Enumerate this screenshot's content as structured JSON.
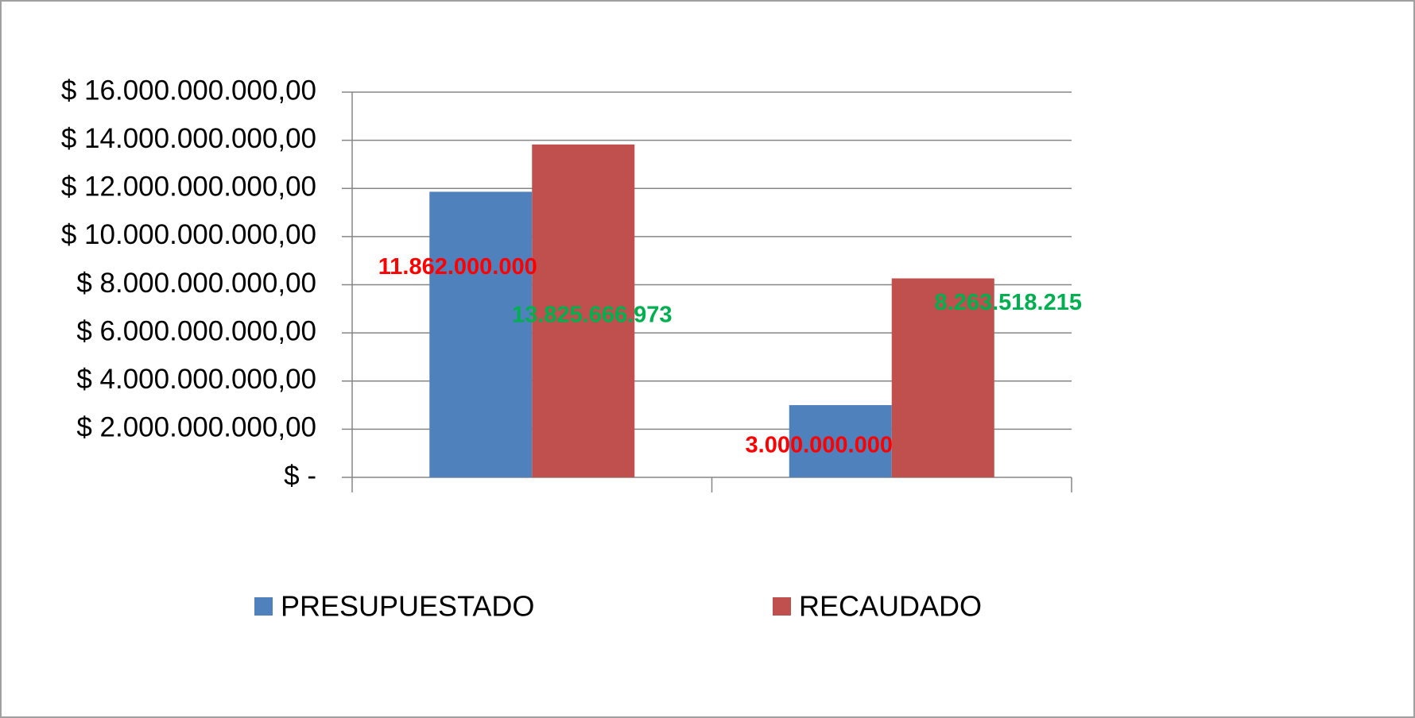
{
  "chart_data": {
    "type": "bar",
    "categories": [
      null,
      null
    ],
    "series": [
      {
        "name": "PRESUPUESTADO",
        "color": "#4f81bd",
        "label_color": "#ff0000",
        "values": [
          11862000000,
          3000000000
        ],
        "value_labels": [
          "11.862.000.000",
          "3.000.000.000"
        ]
      },
      {
        "name": "RECAUDADO",
        "color": "#c0504d",
        "label_color": "#00b050",
        "values": [
          13825666973,
          8263518215
        ],
        "value_labels": [
          "13.825.666.973",
          "8.263.518.215"
        ]
      }
    ],
    "ylim": [
      0,
      16000000000
    ],
    "yticks": [
      {
        "value": 0,
        "label": "$ -"
      },
      {
        "value": 2000000000,
        "label": "$ 2.000.000.000,00"
      },
      {
        "value": 4000000000,
        "label": "$ 4.000.000.000,00"
      },
      {
        "value": 6000000000,
        "label": "$ 6.000.000.000,00"
      },
      {
        "value": 8000000000,
        "label": "$ 8.000.000.000,00"
      },
      {
        "value": 10000000000,
        "label": "$ 10.000.000.000,00"
      },
      {
        "value": 12000000000,
        "label": "$ 12.000.000.000,00"
      },
      {
        "value": 14000000000,
        "label": "$ 14.000.000.000,00"
      },
      {
        "value": 16000000000,
        "label": "$ 16.000.000.000,00"
      }
    ],
    "grid": true,
    "legend": "bottom"
  }
}
